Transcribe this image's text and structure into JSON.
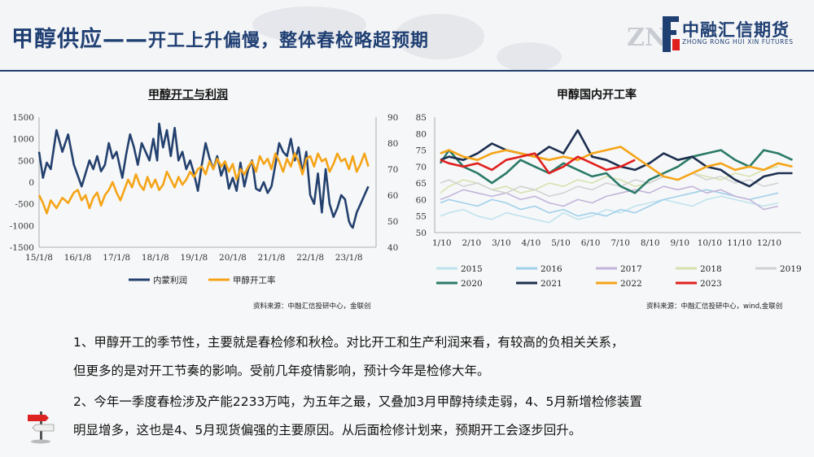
{
  "header": {
    "title_main": "甲醇供应——",
    "title_sub": "开工上升偏慢，整体春检略超预期"
  },
  "logo": {
    "mark": "ZN",
    "name": "中融汇信期货",
    "name_en": "ZHONG RONG HUI XIN FUTURES"
  },
  "colors": {
    "navy": "#23406e",
    "orange": "#f5a417",
    "red": "#e0201e"
  },
  "chart_data": [
    {
      "type": "line",
      "title": "甲醇开工与利润",
      "x_ticks": [
        "15/1/8",
        "16/1/8",
        "17/1/8",
        "18/1/8",
        "19/1/8",
        "20/1/8",
        "21/1/8",
        "22/1/8",
        "23/1/8"
      ],
      "y_left_ticks": [
        "1500",
        "1000",
        "500",
        "0",
        "-500",
        "-1000",
        "-1500"
      ],
      "y_left_range": [
        -1500,
        1500
      ],
      "y_right_ticks": [
        "90",
        "80",
        "70",
        "60",
        "50",
        "40"
      ],
      "y_right_range": [
        40,
        90
      ],
      "series": [
        {
          "name": "内蒙利润",
          "axis": "left",
          "color": "#23406e",
          "x": [
            2015.0,
            2015.1,
            2015.2,
            2015.3,
            2015.45,
            2015.6,
            2015.75,
            2015.9,
            2016.0,
            2016.1,
            2016.2,
            2016.3,
            2016.4,
            2016.5,
            2016.6,
            2016.7,
            2016.8,
            2016.9,
            2017.0,
            2017.1,
            2017.15,
            2017.25,
            2017.35,
            2017.45,
            2017.55,
            2017.65,
            2017.75,
            2017.85,
            2017.95,
            2018.05,
            2018.1,
            2018.2,
            2018.3,
            2018.4,
            2018.5,
            2018.6,
            2018.7,
            2018.8,
            2018.9,
            2019.0,
            2019.1,
            2019.2,
            2019.3,
            2019.4,
            2019.5,
            2019.6,
            2019.7,
            2019.8,
            2019.9,
            2020.0,
            2020.1,
            2020.2,
            2020.3,
            2020.4,
            2020.5,
            2020.6,
            2020.7,
            2020.8,
            2020.9,
            2021.0,
            2021.1,
            2021.2,
            2021.3,
            2021.4,
            2021.5,
            2021.6,
            2021.7,
            2021.8,
            2021.9,
            2022.0,
            2022.1,
            2022.2,
            2022.3,
            2022.4,
            2022.5,
            2022.6,
            2022.7,
            2022.8,
            2022.9,
            2023.0,
            2023.05,
            2023.1,
            2023.2,
            2023.3,
            2023.4,
            2023.5
          ],
          "y": [
            700,
            100,
            450,
            300,
            1200,
            700,
            1100,
            400,
            150,
            -100,
            200,
            500,
            300,
            600,
            250,
            400,
            900,
            550,
            700,
            300,
            100,
            650,
            1100,
            800,
            400,
            900,
            700,
            500,
            1000,
            500,
            1350,
            800,
            1200,
            600,
            1250,
            500,
            700,
            300,
            500,
            200,
            -200,
            400,
            900,
            550,
            300,
            600,
            150,
            400,
            -150,
            100,
            -200,
            450,
            -100,
            300,
            500,
            -150,
            -200,
            0,
            -250,
            -100,
            400,
            900,
            700,
            600,
            1000,
            500,
            800,
            200,
            700,
            -300,
            -500,
            200,
            -700,
            300,
            -500,
            -800,
            -600,
            -300,
            -400,
            -900,
            -1000,
            -1050,
            -700,
            -500,
            -300,
            -100
          ]
        },
        {
          "name": "甲醇开工率",
          "axis": "right",
          "color": "#f5a417",
          "x": [
            2015.0,
            2015.1,
            2015.2,
            2015.3,
            2015.45,
            2015.6,
            2015.75,
            2015.9,
            2016.0,
            2016.1,
            2016.2,
            2016.3,
            2016.4,
            2016.5,
            2016.6,
            2016.7,
            2016.8,
            2016.9,
            2017.0,
            2017.1,
            2017.2,
            2017.3,
            2017.4,
            2017.5,
            2017.6,
            2017.7,
            2017.8,
            2017.9,
            2018.0,
            2018.1,
            2018.2,
            2018.3,
            2018.4,
            2018.5,
            2018.6,
            2018.7,
            2018.8,
            2018.9,
            2019.0,
            2019.1,
            2019.2,
            2019.3,
            2019.4,
            2019.5,
            2019.6,
            2019.7,
            2019.8,
            2019.9,
            2020.0,
            2020.1,
            2020.2,
            2020.3,
            2020.4,
            2020.5,
            2020.6,
            2020.7,
            2020.8,
            2020.9,
            2021.0,
            2021.1,
            2021.2,
            2021.3,
            2021.4,
            2021.5,
            2021.6,
            2021.7,
            2021.8,
            2021.9,
            2022.0,
            2022.1,
            2022.2,
            2022.3,
            2022.4,
            2022.5,
            2022.6,
            2022.7,
            2022.8,
            2022.9,
            2023.0,
            2023.1,
            2023.2,
            2023.3,
            2023.4,
            2023.5
          ],
          "y": [
            60,
            57,
            53,
            58,
            55,
            59,
            57,
            61,
            62,
            58,
            60,
            55,
            59,
            61,
            56,
            60,
            62,
            65,
            61,
            58,
            62,
            66,
            63,
            68,
            64,
            62,
            67,
            63,
            66,
            62,
            64,
            69,
            66,
            63,
            67,
            64,
            66,
            69,
            67,
            70,
            71,
            68,
            73,
            70,
            74,
            71,
            73,
            69,
            72,
            66,
            70,
            68,
            71,
            73,
            69,
            75,
            72,
            74,
            70,
            76,
            73,
            69,
            74,
            71,
            76,
            73,
            68,
            74,
            75,
            71,
            76,
            73,
            74,
            69,
            72,
            76,
            73,
            74,
            70,
            75,
            69,
            72,
            76,
            71
          ]
        }
      ],
      "source": "资料来源：中融汇信投研中心，金联创"
    },
    {
      "type": "line",
      "title": "甲醇国内开工率",
      "x_ticks": [
        "1/10",
        "2/10",
        "3/10",
        "4/10",
        "5/10",
        "6/10",
        "7/10",
        "8/10",
        "9/10",
        "10/10",
        "11/10",
        "12/10"
      ],
      "y_ticks": [
        "85",
        "80",
        "75",
        "70",
        "65",
        "60",
        "55",
        "50"
      ],
      "y_range": [
        50,
        85
      ],
      "series": [
        {
          "name": "2015",
          "color": "#bfe3ee",
          "x": [
            0.2,
            0.5,
            1,
            1.5,
            2,
            2.5,
            3,
            3.5,
            4,
            4.5,
            5,
            5.5,
            6,
            6.5,
            7,
            7.5,
            8,
            8.5,
            9,
            9.5,
            10,
            10.5,
            11,
            11.5,
            12
          ],
          "y": [
            55,
            56,
            57,
            55,
            54,
            56,
            55,
            54,
            53,
            56,
            54,
            55,
            57,
            56,
            58,
            59,
            60,
            59,
            58,
            60,
            61,
            60,
            59,
            58,
            59
          ]
        },
        {
          "name": "2016",
          "color": "#9fd0ea",
          "x": [
            0.2,
            0.5,
            1,
            1.5,
            2,
            2.5,
            3,
            3.5,
            4,
            4.5,
            5,
            5.5,
            6,
            6.5,
            7,
            7.5,
            8,
            8.5,
            9,
            9.5,
            10,
            10.5,
            11,
            11.5,
            12
          ],
          "y": [
            59,
            60,
            59,
            58,
            60,
            59,
            57,
            58,
            56,
            57,
            55,
            56,
            55,
            57,
            56,
            58,
            60,
            61,
            62,
            63,
            62,
            61,
            60,
            61,
            62
          ]
        },
        {
          "name": "2017",
          "color": "#c3b5da",
          "x": [
            0.2,
            0.5,
            1,
            1.5,
            2,
            2.5,
            3,
            3.5,
            4,
            4.5,
            5,
            5.5,
            6,
            6.5,
            7,
            7.5,
            8,
            8.5,
            9,
            9.5,
            10,
            10.5,
            11,
            11.5,
            12
          ],
          "y": [
            60,
            61,
            63,
            62,
            61,
            62,
            60,
            61,
            59,
            58,
            60,
            59,
            61,
            62,
            63,
            62,
            64,
            63,
            64,
            62,
            63,
            61,
            60,
            57,
            58
          ]
        },
        {
          "name": "2018",
          "color": "#d6e2ae",
          "x": [
            0.2,
            0.5,
            1,
            1.5,
            2,
            2.5,
            3,
            3.5,
            4,
            4.5,
            5,
            5.5,
            6,
            6.5,
            7,
            7.5,
            8,
            8.5,
            9,
            9.5,
            10,
            10.5,
            11,
            11.5,
            12
          ],
          "y": [
            62,
            64,
            66,
            65,
            63,
            64,
            62,
            63,
            65,
            64,
            66,
            65,
            67,
            66,
            64,
            65,
            67,
            66,
            68,
            67,
            66,
            68,
            67,
            69,
            70
          ]
        },
        {
          "name": "2019",
          "color": "#d2d2d2",
          "x": [
            0.2,
            0.5,
            1,
            1.5,
            2,
            2.5,
            3,
            3.5,
            4,
            4.5,
            5,
            5.5,
            6,
            6.5,
            7,
            7.5,
            8,
            8.5,
            9,
            9.5,
            10,
            10.5,
            11,
            11.5,
            12
          ],
          "y": [
            65,
            66,
            64,
            65,
            63,
            62,
            64,
            63,
            61,
            62,
            64,
            63,
            65,
            64,
            66,
            65,
            67,
            66,
            68,
            66,
            67,
            65,
            66,
            64,
            65
          ]
        },
        {
          "name": "2020",
          "color": "#2a7a68",
          "x": [
            0.2,
            0.5,
            1,
            1.5,
            2,
            2.5,
            3,
            3.5,
            4,
            4.5,
            5,
            5.5,
            6,
            6.5,
            7,
            7.5,
            8,
            8.5,
            9,
            9.5,
            10,
            10.5,
            11,
            11.5,
            12,
            12.5
          ],
          "y": [
            71,
            75,
            70,
            68,
            65,
            68,
            72,
            70,
            68,
            71,
            69,
            67,
            68,
            64,
            62,
            66,
            68,
            70,
            73,
            74,
            75,
            72,
            70,
            75,
            74,
            72
          ]
        },
        {
          "name": "2021",
          "color": "#1c2f4f",
          "x": [
            0.2,
            0.5,
            1,
            1.5,
            2,
            2.5,
            3,
            3.5,
            4,
            4.5,
            5,
            5.5,
            6,
            6.5,
            7,
            7.5,
            8,
            8.5,
            9,
            9.5,
            10,
            10.5,
            11,
            11.5,
            12,
            12.5
          ],
          "y": [
            72,
            73,
            72,
            74,
            77,
            75,
            74,
            73,
            76,
            74,
            81,
            73,
            72,
            70,
            69,
            71,
            74,
            72,
            73,
            70,
            69,
            66,
            64,
            67,
            68,
            68
          ]
        },
        {
          "name": "2022",
          "color": "#f5a417",
          "x": [
            0.2,
            0.5,
            1,
            1.5,
            2,
            2.5,
            3,
            3.5,
            4,
            4.5,
            5,
            5.5,
            6,
            6.5,
            7,
            7.5,
            8,
            8.5,
            9,
            9.5,
            10,
            10.5,
            11,
            11.5,
            12,
            12.5
          ],
          "y": [
            74,
            75,
            73,
            72,
            74,
            75,
            74,
            73,
            72,
            73,
            72,
            74,
            75,
            76,
            73,
            70,
            67,
            66,
            68,
            70,
            71,
            69,
            70,
            69,
            71,
            70
          ]
        },
        {
          "name": "2023",
          "color": "#e0201e",
          "x": [
            0.2,
            0.5,
            1,
            1.5,
            2,
            2.5,
            3,
            3.5,
            4,
            4.5,
            5,
            5.5,
            6,
            6.5,
            7
          ],
          "y": [
            72,
            71,
            70,
            71,
            69,
            72,
            73,
            74,
            68,
            70,
            73,
            71,
            69,
            70,
            72
          ]
        }
      ],
      "source": "资料来源：中融汇信投研中心，wind,金联创"
    }
  ],
  "text": {
    "p1_line1": "1、甲醇开工的季节性，主要就是春检修和秋检。对比开工和生产利润来看，有较高的负相关关系，",
    "p1_line2": "但更多的是对开工节奏的影响。受前几年疫情影响，预计今年是检修大年。",
    "p2_line1": "2、今年一季度春检涉及产能2233万吨，为五年之最，又叠加3月甲醇持续走弱，4、5月新增检修装置",
    "p2_line2": "明显增多，这也是4、5月现货偏强的主要原因。从后面检修计划来，预期开工会逐步回升。"
  }
}
